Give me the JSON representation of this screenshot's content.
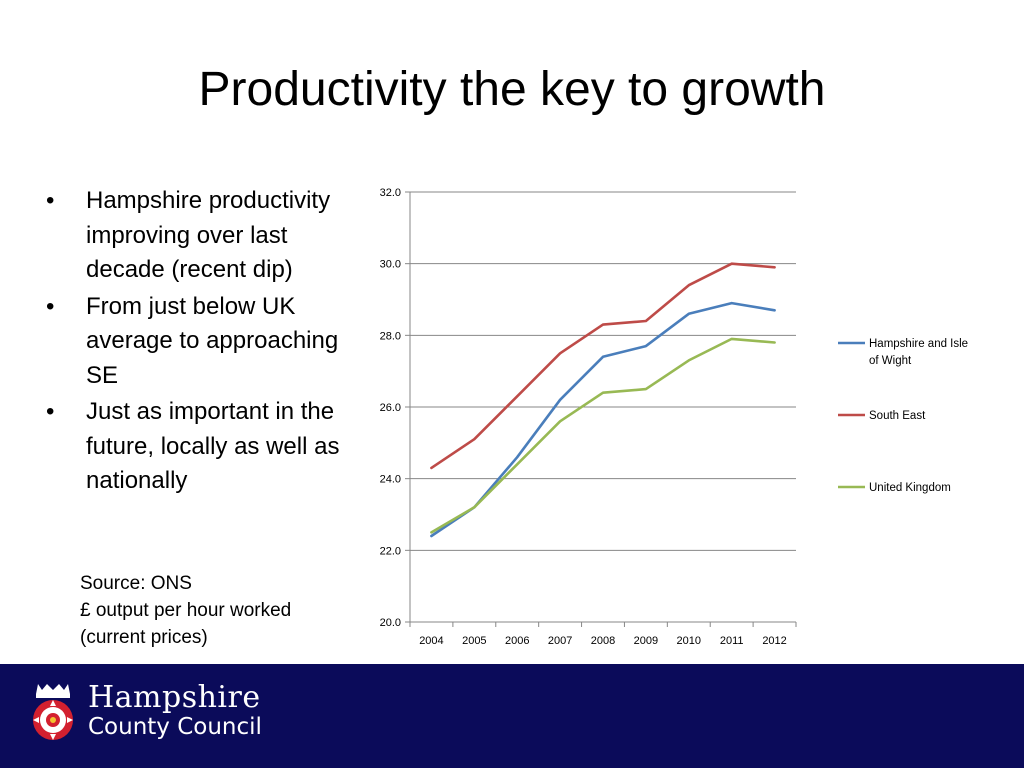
{
  "slide": {
    "title": "Productivity the key to growth",
    "bullets": [
      "Hampshire productivity improving over last decade (recent dip)",
      "From just below UK average to approaching SE",
      "Just as important in the future, locally as well as nationally"
    ],
    "source_lines": [
      "Source: ONS",
      "£ output per hour worked",
      "(current prices)"
    ]
  },
  "footer": {
    "org_line1": "Hampshire",
    "org_line2": "County Council",
    "background": "#0b0b5a"
  },
  "chart_data": {
    "type": "line",
    "title": "",
    "xlabel": "",
    "ylabel": "",
    "x": [
      "2004",
      "2005",
      "2006",
      "2007",
      "2008",
      "2009",
      "2010",
      "2011",
      "2012"
    ],
    "ylim": [
      20.0,
      32.0
    ],
    "yticks": [
      "20.0",
      "22.0",
      "24.0",
      "26.0",
      "28.0",
      "30.0",
      "32.0"
    ],
    "grid": true,
    "legend_position": "right",
    "series": [
      {
        "name": "Hampshire and Isle of Wight",
        "legend_lines": [
          "Hampshire and Isle",
          "of Wight"
        ],
        "color": "#4a7ebb",
        "values": [
          22.4,
          23.2,
          24.6,
          26.2,
          27.4,
          27.7,
          28.6,
          28.9,
          28.7
        ]
      },
      {
        "name": "South East",
        "legend_lines": [
          "South East"
        ],
        "color": "#be4b48",
        "values": [
          24.3,
          25.1,
          26.3,
          27.5,
          28.3,
          28.4,
          29.4,
          30.0,
          29.9
        ]
      },
      {
        "name": "United Kingdom",
        "legend_lines": [
          "United Kingdom"
        ],
        "color": "#98b954",
        "values": [
          22.5,
          23.2,
          24.4,
          25.6,
          26.4,
          26.5,
          27.3,
          27.9,
          27.8
        ]
      }
    ]
  }
}
